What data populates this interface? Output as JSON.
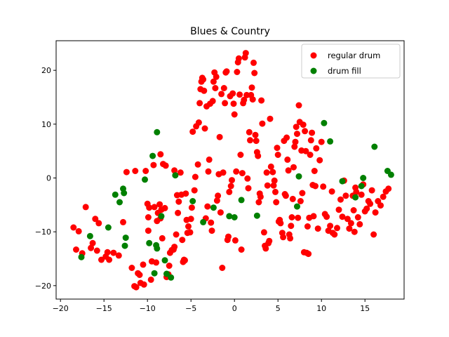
{
  "chart_data": {
    "type": "scatter",
    "title": "Blues & Country",
    "xlabel": "",
    "ylabel": "",
    "xlim": [
      -20.5,
      19.5
    ],
    "ylim": [
      -22.5,
      25.5
    ],
    "xticks": [
      -20,
      -15,
      -10,
      -5,
      0,
      5,
      10,
      15
    ],
    "yticks": [
      -20,
      -10,
      0,
      10,
      20
    ],
    "grid": false,
    "legend_position": "top-right",
    "series": [
      {
        "name": "regular drum",
        "color": "#ff0000",
        "points": [
          [
            -18.5,
            -9.2
          ],
          [
            -18.2,
            -13.3
          ],
          [
            -17.9,
            -9.9
          ],
          [
            -17.5,
            -14.0
          ],
          [
            -17.1,
            -5.4
          ],
          [
            -16.5,
            -13.0
          ],
          [
            -16.3,
            -12.1
          ],
          [
            -16.0,
            -7.6
          ],
          [
            -15.8,
            -13.5
          ],
          [
            -15.6,
            -8.4
          ],
          [
            -15.3,
            -15.2
          ],
          [
            -14.8,
            -14.6
          ],
          [
            -14.6,
            -13.8
          ],
          [
            -14.4,
            -15.2
          ],
          [
            -13.9,
            -13.9
          ],
          [
            -13.3,
            -14.4
          ],
          [
            -12.8,
            -8.2
          ],
          [
            -12.4,
            1.1
          ],
          [
            -11.8,
            -16.7
          ],
          [
            -11.5,
            -20.1
          ],
          [
            -11.3,
            -20.3
          ],
          [
            -11.4,
            1.3
          ],
          [
            -11.1,
            -17.7
          ],
          [
            -10.9,
            -18.0
          ],
          [
            -10.8,
            -19.5
          ],
          [
            -10.5,
            -16.1
          ],
          [
            -10.4,
            -19.8
          ],
          [
            -10.2,
            1.3
          ],
          [
            -10.0,
            -4.8
          ],
          [
            -9.9,
            -9.8
          ],
          [
            -9.9,
            -7.3
          ],
          [
            -9.8,
            -5.5
          ],
          [
            -9.6,
            -18.9
          ],
          [
            -9.5,
            -15.5
          ],
          [
            -9.3,
            2.4
          ],
          [
            -9.2,
            -5.4
          ],
          [
            -9.0,
            -15.7
          ],
          [
            -8.9,
            -8.0
          ],
          [
            -8.8,
            -6.5
          ],
          [
            -8.6,
            -4.9
          ],
          [
            -8.5,
            -7.5
          ],
          [
            -8.5,
            4.4
          ],
          [
            -8.4,
            -5.9
          ],
          [
            -8.3,
            -11.2
          ],
          [
            -8.2,
            2.6
          ],
          [
            -8.0,
            -5.6
          ],
          [
            -7.9,
            2.3
          ],
          [
            -7.8,
            -18.4
          ],
          [
            -7.6,
            -17.9
          ],
          [
            -7.5,
            -16.3
          ],
          [
            -7.4,
            -13.9
          ],
          [
            -7.2,
            -13.4
          ],
          [
            -7.0,
            -13.3
          ],
          [
            -6.9,
            -12.8
          ],
          [
            -6.9,
            1.4
          ],
          [
            -6.7,
            -10.5
          ],
          [
            -6.6,
            -3.2
          ],
          [
            -6.5,
            -6.5
          ],
          [
            -6.4,
            -4.4
          ],
          [
            -6.2,
            1.0
          ],
          [
            -6.1,
            -3.1
          ],
          [
            -6.0,
            -11.5
          ],
          [
            -5.9,
            -15.6
          ],
          [
            -5.8,
            -15.2
          ],
          [
            -5.7,
            -15.3
          ],
          [
            -5.6,
            -2.9
          ],
          [
            -5.5,
            -7.8
          ],
          [
            -5.4,
            -10.2
          ],
          [
            -5.3,
            -9.0
          ],
          [
            -5.1,
            -10.1
          ],
          [
            -5.0,
            -7.6
          ],
          [
            -4.9,
            -5.5
          ],
          [
            -4.8,
            8.6
          ],
          [
            -4.6,
            -2.3
          ],
          [
            -4.5,
            0.2
          ],
          [
            -4.4,
            9.6
          ],
          [
            -4.2,
            2.5
          ],
          [
            -4.1,
            10.3
          ],
          [
            -4.0,
            13.9
          ],
          [
            -3.9,
            16.5
          ],
          [
            -3.8,
            17.9
          ],
          [
            -3.7,
            18.6
          ],
          [
            -3.6,
            18.3
          ],
          [
            -3.5,
            16.2
          ],
          [
            -3.4,
            9.2
          ],
          [
            -3.3,
            -7.5
          ],
          [
            -3.2,
            13.3
          ],
          [
            -3.1,
            -5.3
          ],
          [
            -3.0,
            1.2
          ],
          [
            -2.9,
            3.4
          ],
          [
            -2.8,
            13.8
          ],
          [
            -2.7,
            -8.3
          ],
          [
            -2.6,
            -9.8
          ],
          [
            -2.5,
            14.3
          ],
          [
            -2.4,
            17.9
          ],
          [
            -2.3,
            19.6
          ],
          [
            -2.2,
            16.7
          ],
          [
            -2.1,
            18.8
          ],
          [
            -2.0,
            -4.2
          ],
          [
            -1.9,
            -3.3
          ],
          [
            -1.8,
            0.7
          ],
          [
            -1.7,
            7.6
          ],
          [
            -1.6,
            -6.4
          ],
          [
            -1.5,
            15.6
          ],
          [
            -1.4,
            -16.7
          ],
          [
            -1.3,
            1.0
          ],
          [
            -1.2,
            16.7
          ],
          [
            -1.1,
            13.9
          ],
          [
            -1.0,
            19.6
          ],
          [
            -0.9,
            19.8
          ],
          [
            -0.8,
            -11.5
          ],
          [
            -0.7,
            -10.9
          ],
          [
            -0.6,
            -2.6
          ],
          [
            -0.5,
            15.2
          ],
          [
            -0.4,
            -1.5
          ],
          [
            -0.3,
            -0.4
          ],
          [
            -0.2,
            15.7
          ],
          [
            -0.1,
            13.8
          ],
          [
            0.0,
            11.8
          ],
          [
            0.1,
            -11.6
          ],
          [
            0.2,
            1.2
          ],
          [
            0.3,
            19.7
          ],
          [
            0.4,
            21.5
          ],
          [
            0.5,
            22.2
          ],
          [
            0.6,
            15.5
          ],
          [
            0.7,
            4.3
          ],
          [
            0.8,
            -13.3
          ],
          [
            0.9,
            0.9
          ],
          [
            1.0,
            13.9
          ],
          [
            1.1,
            14.5
          ],
          [
            1.2,
            22.4
          ],
          [
            1.3,
            23.2
          ],
          [
            1.4,
            15.4
          ],
          [
            1.5,
            -0.1
          ],
          [
            1.6,
            -1.9
          ],
          [
            1.7,
            8.5
          ],
          [
            1.8,
            7.0
          ],
          [
            1.9,
            15.4
          ],
          [
            2.0,
            16.8
          ],
          [
            2.1,
            14.6
          ],
          [
            2.2,
            21.4
          ],
          [
            2.3,
            19.5
          ],
          [
            2.4,
            8.0
          ],
          [
            2.5,
            6.9
          ],
          [
            2.6,
            4.8
          ],
          [
            2.7,
            4.1
          ],
          [
            2.8,
            -4.5
          ],
          [
            2.9,
            -2.9
          ],
          [
            3.0,
            -3.5
          ],
          [
            3.1,
            14.4
          ],
          [
            3.2,
            10.1
          ],
          [
            3.4,
            -10.1
          ],
          [
            3.5,
            -12.6
          ],
          [
            3.6,
            -13.1
          ],
          [
            3.7,
            1.0
          ],
          [
            3.8,
            -1.4
          ],
          [
            3.9,
            -12.1
          ],
          [
            4.0,
            -11.7
          ],
          [
            4.1,
            11.0
          ],
          [
            4.2,
            2.1
          ],
          [
            4.4,
            1.1
          ],
          [
            4.5,
            -1.4
          ],
          [
            4.6,
            -0.5
          ],
          [
            4.7,
            -2.6
          ],
          [
            4.8,
            -4.5
          ],
          [
            4.9,
            5.6
          ],
          [
            5.0,
            4.3
          ],
          [
            5.1,
            -8.1
          ],
          [
            5.2,
            -7.8
          ],
          [
            5.3,
            -8.4
          ],
          [
            5.5,
            -10.2
          ],
          [
            5.6,
            -11.0
          ],
          [
            5.7,
            6.9
          ],
          [
            5.8,
            -3.0
          ],
          [
            5.9,
            -3.3
          ],
          [
            6.0,
            7.5
          ],
          [
            6.1,
            3.4
          ],
          [
            6.2,
            1.4
          ],
          [
            6.3,
            -10.5
          ],
          [
            6.4,
            -11.2
          ],
          [
            6.5,
            -8.9
          ],
          [
            6.6,
            -7.3
          ],
          [
            6.7,
            -3.9
          ],
          [
            6.8,
            2.0
          ],
          [
            6.9,
            5.8
          ],
          [
            7.0,
            6.7
          ],
          [
            7.1,
            9.5
          ],
          [
            7.2,
            8.2
          ],
          [
            7.3,
            -7.4
          ],
          [
            7.4,
            13.5
          ],
          [
            7.5,
            10.4
          ],
          [
            7.6,
            -4.3
          ],
          [
            7.7,
            5.1
          ],
          [
            7.8,
            -2.8
          ],
          [
            7.9,
            9.9
          ],
          [
            8.0,
            -13.8
          ],
          [
            8.1,
            8.7
          ],
          [
            8.2,
            5.0
          ],
          [
            8.3,
            -13.9
          ],
          [
            8.4,
            -9.0
          ],
          [
            8.5,
            -14.1
          ],
          [
            8.6,
            -7.4
          ],
          [
            8.7,
            4.3
          ],
          [
            8.8,
            7.0
          ],
          [
            8.9,
            8.4
          ],
          [
            9.0,
            -1.3
          ],
          [
            9.1,
            -7.1
          ],
          [
            9.2,
            1.3
          ],
          [
            9.3,
            -1.5
          ],
          [
            9.4,
            5.5
          ],
          [
            9.6,
            -9.4
          ],
          [
            9.8,
            3.3
          ],
          [
            10.0,
            6.7
          ],
          [
            10.2,
            -1.6
          ],
          [
            10.4,
            -6.7
          ],
          [
            10.6,
            -7.2
          ],
          [
            10.8,
            -9.8
          ],
          [
            11.0,
            -8.9
          ],
          [
            11.2,
            -2.5
          ],
          [
            11.3,
            -10.2
          ],
          [
            11.5,
            -10.5
          ],
          [
            11.8,
            -9.3
          ],
          [
            12.0,
            -5.9
          ],
          [
            12.2,
            -4.0
          ],
          [
            12.4,
            -7.2
          ],
          [
            12.6,
            -0.5
          ],
          [
            12.8,
            -3.3
          ],
          [
            13.0,
            -7.6
          ],
          [
            13.2,
            -9.4
          ],
          [
            13.4,
            -8.4
          ],
          [
            13.6,
            -3.3
          ],
          [
            13.7,
            -6.0
          ],
          [
            13.8,
            -10.0
          ],
          [
            13.9,
            -1.8
          ],
          [
            14.0,
            -2.6
          ],
          [
            14.2,
            -7.3
          ],
          [
            14.4,
            -8.6
          ],
          [
            14.6,
            -3.1
          ],
          [
            14.8,
            -1.2
          ],
          [
            15.0,
            -6.2
          ],
          [
            15.2,
            -5.7
          ],
          [
            15.4,
            -4.3
          ],
          [
            15.6,
            -4.8
          ],
          [
            15.8,
            -2.3
          ],
          [
            16.0,
            -10.5
          ],
          [
            16.2,
            -6.4
          ],
          [
            16.5,
            -4.3
          ],
          [
            16.8,
            -5.1
          ],
          [
            17.1,
            -3.5
          ],
          [
            17.4,
            -2.5
          ],
          [
            17.7,
            -2.0
          ]
        ]
      },
      {
        "name": "drum fill",
        "color": "#008000",
        "points": [
          [
            -17.6,
            -14.7
          ],
          [
            -16.6,
            -10.8
          ],
          [
            -14.5,
            -9.2
          ],
          [
            -13.7,
            -3.1
          ],
          [
            -13.2,
            -4.5
          ],
          [
            -12.8,
            -2.0
          ],
          [
            -12.7,
            -2.8
          ],
          [
            -12.6,
            -12.6
          ],
          [
            -12.5,
            -11.1
          ],
          [
            -10.3,
            -0.3
          ],
          [
            -9.8,
            -12.1
          ],
          [
            -9.4,
            4.1
          ],
          [
            -9.2,
            -17.7
          ],
          [
            -9.0,
            -12.5
          ],
          [
            -8.9,
            -13.1
          ],
          [
            -8.9,
            8.5
          ],
          [
            -8.4,
            -7.1
          ],
          [
            -8.0,
            -15.3
          ],
          [
            -7.8,
            -17.8
          ],
          [
            -7.3,
            -18.5
          ],
          [
            -6.8,
            0.5
          ],
          [
            -4.8,
            -4.3
          ],
          [
            -3.6,
            -8.2
          ],
          [
            -2.4,
            -5.5
          ],
          [
            -0.6,
            -7.1
          ],
          [
            0.0,
            -7.3
          ],
          [
            0.8,
            -4.1
          ],
          [
            2.6,
            -7.0
          ],
          [
            7.2,
            -5.3
          ],
          [
            7.4,
            0.3
          ],
          [
            10.3,
            10.2
          ],
          [
            11.0,
            6.8
          ],
          [
            12.4,
            -0.6
          ],
          [
            13.9,
            -3.6
          ],
          [
            14.6,
            -1.5
          ],
          [
            14.8,
            0.0
          ],
          [
            16.1,
            5.8
          ],
          [
            17.6,
            1.3
          ],
          [
            18.0,
            0.6
          ]
        ]
      }
    ]
  }
}
